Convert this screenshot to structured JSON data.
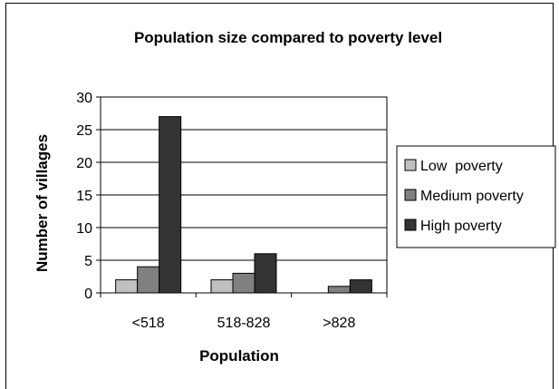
{
  "chart_data": {
    "type": "bar",
    "title": "Population size compared to poverty level",
    "xlabel": "Population",
    "ylabel": "Number of villages",
    "categories": [
      "<518",
      "518-828",
      ">828"
    ],
    "series": [
      {
        "name": "Low  poverty",
        "values": [
          2,
          2,
          0
        ],
        "color": "#c0c0c0"
      },
      {
        "name": "Medium poverty",
        "values": [
          4,
          3,
          1
        ],
        "color": "#808080"
      },
      {
        "name": "High poverty",
        "values": [
          27,
          6,
          2
        ],
        "color": "#333333"
      }
    ],
    "ylim": [
      0,
      30
    ],
    "yticks": [
      "0",
      "5",
      "10",
      "15",
      "20",
      "25",
      "30"
    ],
    "grid": true,
    "legend": "right"
  }
}
